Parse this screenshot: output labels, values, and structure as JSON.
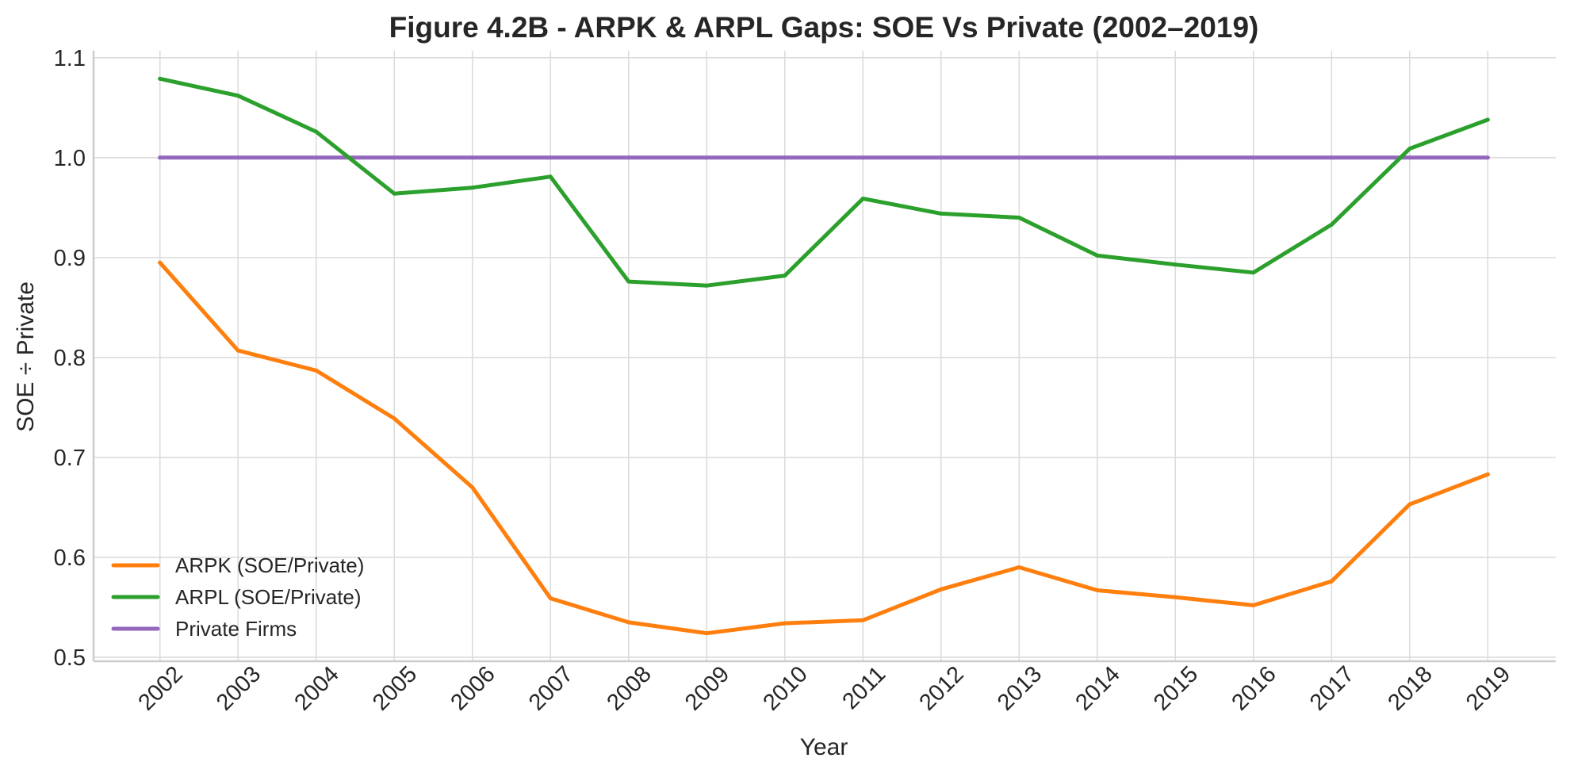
{
  "chart_data": {
    "type": "line",
    "title": "Figure 4.2B - ARPK & ARPL Gaps: SOE Vs Private (2002–2019)",
    "xlabel": "Year",
    "ylabel": "SOE ÷ Private",
    "x": [
      2002,
      2003,
      2004,
      2005,
      2006,
      2007,
      2008,
      2009,
      2010,
      2011,
      2012,
      2013,
      2014,
      2015,
      2016,
      2017,
      2018,
      2019
    ],
    "x_tick_labels": [
      "2002",
      "2003",
      "2004",
      "2005",
      "2006",
      "2007",
      "2008",
      "2009",
      "2010",
      "2011",
      "2012",
      "2013",
      "2014",
      "2015",
      "2016",
      "2017",
      "2018",
      "2019"
    ],
    "y_ticks": [
      0.5,
      0.6,
      0.7,
      0.8,
      0.9,
      1.0,
      1.1
    ],
    "y_tick_labels": [
      "0.5",
      "0.6",
      "0.7",
      "0.8",
      "0.9",
      "1.0",
      "1.1"
    ],
    "xlim": [
      2001.15,
      2019.87
    ],
    "ylim": [
      0.496,
      1.107
    ],
    "grid": true,
    "legend_position": "lower-left",
    "series": [
      {
        "name": "ARPK (SOE/Private)",
        "color": "#ff7f0e",
        "values": [
          0.895,
          0.807,
          0.787,
          0.739,
          0.67,
          0.559,
          0.535,
          0.524,
          0.534,
          0.537,
          0.568,
          0.59,
          0.567,
          0.56,
          0.552,
          0.576,
          0.653,
          0.683
        ]
      },
      {
        "name": "ARPL (SOE/Private)",
        "color": "#2ca02c",
        "values": [
          1.079,
          1.062,
          1.026,
          0.964,
          0.97,
          0.981,
          0.876,
          0.872,
          0.882,
          0.959,
          0.944,
          0.94,
          0.902,
          0.893,
          0.885,
          0.933,
          1.009,
          1.038
        ]
      },
      {
        "name": "Private Firms",
        "color": "#9467bd",
        "values": [
          1.0,
          1.0,
          1.0,
          1.0,
          1.0,
          1.0,
          1.0,
          1.0,
          1.0,
          1.0,
          1.0,
          1.0,
          1.0,
          1.0,
          1.0,
          1.0,
          1.0,
          1.0
        ]
      }
    ]
  }
}
